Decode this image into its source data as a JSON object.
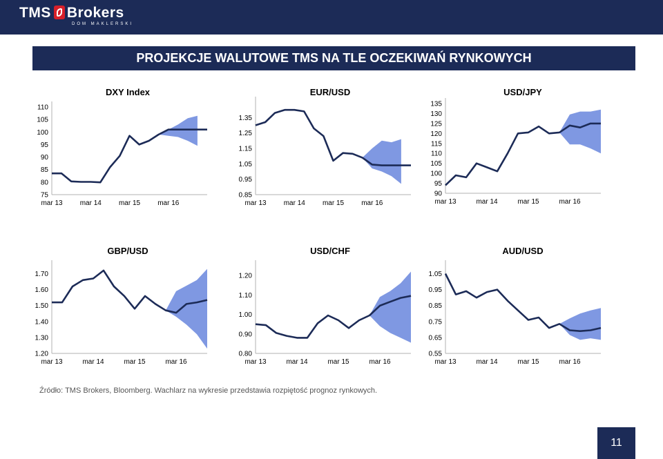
{
  "header": {
    "logo_text": "TMS",
    "logo_text2": "Brokers",
    "logo_subtext": "DOM MAKLERSKI"
  },
  "page_title": "PROJEKCJE WALUTOWE TMS NA TLE OCZEKIWAŃ RYNKOWYCH",
  "footnote": "Źródło: TMS Brokers, Bloomberg. Wachlarz na wykresie przedstawia rozpiętość prognoz  rynkowych.",
  "page_number": "11",
  "colors": {
    "header_bg": "#1c2b57",
    "line": "#1c2b57",
    "band": "#7f98e2",
    "axis": "#b0b0b0"
  },
  "chart_data": [
    {
      "type": "line",
      "title": "DXY Index",
      "x_ticks": [
        "mar 13",
        "mar 14",
        "mar 15",
        "mar 16"
      ],
      "y_ticks": [
        "75",
        "80",
        "85",
        "90",
        "95",
        "100",
        "105",
        "110"
      ],
      "ylim": [
        75,
        110
      ],
      "series": [
        {
          "values": [
            83.5,
            83.5,
            80.3,
            80.1,
            80.1,
            79.9,
            86.0,
            90.5,
            98.5,
            95.0,
            96.5,
            99.0,
            101.0,
            101.0,
            101.0,
            101.0,
            101.0
          ]
        }
      ],
      "band": {
        "start_index": 11,
        "upper": [
          99.0,
          101.0,
          103.0,
          105.5,
          106.5
        ],
        "lower": [
          99.0,
          98.5,
          98.0,
          96.5,
          94.5
        ]
      }
    },
    {
      "type": "line",
      "title": "EUR/USD",
      "x_ticks": [
        "mar 13",
        "mar 14",
        "mar 15",
        "mar 16"
      ],
      "y_ticks": [
        "0.85",
        "0.95",
        "1.05",
        "1.15",
        "1.25",
        "1.35"
      ],
      "ylim": [
        0.85,
        1.45
      ],
      "series": [
        {
          "values": [
            1.3,
            1.32,
            1.38,
            1.4,
            1.4,
            1.39,
            1.28,
            1.23,
            1.07,
            1.12,
            1.115,
            1.09,
            1.045,
            1.04,
            1.04,
            1.04,
            1.04
          ]
        }
      ],
      "band": {
        "start_index": 11,
        "upper": [
          1.09,
          1.15,
          1.2,
          1.19,
          1.21
        ],
        "lower": [
          1.09,
          1.02,
          1.0,
          0.97,
          0.92
        ]
      }
    },
    {
      "type": "line",
      "title": "USD/JPY",
      "x_ticks": [
        "mar 13",
        "mar 14",
        "mar 15",
        "mar 16"
      ],
      "y_ticks": [
        "90",
        "95",
        "100",
        "105",
        "110",
        "115",
        "120",
        "125",
        "130",
        "135"
      ],
      "ylim": [
        90,
        135
      ],
      "series": [
        {
          "values": [
            94.0,
            99.0,
            98.0,
            105.0,
            103.0,
            101.0,
            110.0,
            120.0,
            120.5,
            123.5,
            120.0,
            120.5,
            124.0,
            123.0,
            125.0,
            125.0
          ]
        }
      ],
      "band": {
        "start_index": 11,
        "upper": [
          120.5,
          129.5,
          131.0,
          131.0,
          132.0
        ],
        "lower": [
          120.5,
          114.5,
          114.5,
          112.5,
          110.0
        ]
      }
    },
    {
      "type": "line",
      "title": "GBP/USD",
      "x_ticks": [
        "mar 13",
        "mar 14",
        "mar 15",
        "mar 16"
      ],
      "y_ticks": [
        "1.20",
        "1.30",
        "1.40",
        "1.50",
        "1.60",
        "1.70"
      ],
      "ylim": [
        1.2,
        1.75
      ],
      "series": [
        {
          "values": [
            1.52,
            1.52,
            1.62,
            1.66,
            1.67,
            1.72,
            1.62,
            1.56,
            1.48,
            1.56,
            1.51,
            1.47,
            1.455,
            1.51,
            1.52,
            1.535
          ]
        }
      ],
      "band": {
        "start_index": 11,
        "upper": [
          1.47,
          1.59,
          1.625,
          1.66,
          1.73
        ],
        "lower": [
          1.47,
          1.43,
          1.38,
          1.32,
          1.23
        ]
      }
    },
    {
      "type": "line",
      "title": "USD/CHF",
      "x_ticks": [
        "mar 13",
        "mar 14",
        "mar 15",
        "mar 16"
      ],
      "y_ticks": [
        "0.80",
        "0.90",
        "1.00",
        "1.10",
        "1.20"
      ],
      "ylim": [
        0.8,
        1.25
      ],
      "series": [
        {
          "values": [
            0.95,
            0.945,
            0.905,
            0.89,
            0.88,
            0.88,
            0.955,
            0.995,
            0.97,
            0.93,
            0.97,
            0.995,
            1.045,
            1.065,
            1.085,
            1.095
          ]
        }
      ],
      "band": {
        "start_index": 11,
        "upper": [
          0.995,
          1.09,
          1.12,
          1.16,
          1.22
        ],
        "lower": [
          0.995,
          0.94,
          0.905,
          0.88,
          0.855
        ]
      }
    },
    {
      "type": "line",
      "title": "AUD/USD",
      "x_ticks": [
        "mar 13",
        "mar 14",
        "mar 15",
        "mar 16"
      ],
      "y_ticks": [
        "0.55",
        "0.65",
        "0.75",
        "0.85",
        "0.95",
        "1.05"
      ],
      "ylim": [
        0.55,
        1.1
      ],
      "series": [
        {
          "values": [
            1.05,
            0.92,
            0.94,
            0.9,
            0.935,
            0.95,
            0.88,
            0.82,
            0.76,
            0.775,
            0.71,
            0.735,
            0.695,
            0.69,
            0.695,
            0.71
          ]
        }
      ],
      "band": {
        "start_index": 11,
        "upper": [
          0.735,
          0.77,
          0.8,
          0.82,
          0.835
        ],
        "lower": [
          0.735,
          0.665,
          0.635,
          0.645,
          0.635
        ]
      }
    }
  ]
}
